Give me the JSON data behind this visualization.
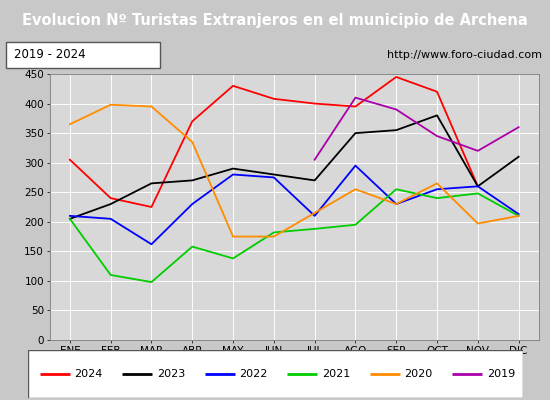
{
  "title": "Evolucion Nº Turistas Extranjeros en el municipio de Archena",
  "subtitle_left": "2019 - 2024",
  "subtitle_right": "http://www.foro-ciudad.com",
  "months": [
    "ENE",
    "FEB",
    "MAR",
    "ABR",
    "MAY",
    "JUN",
    "JUL",
    "AGO",
    "SEP",
    "OCT",
    "NOV",
    "DIC"
  ],
  "series": {
    "2024": {
      "color": "#ff0000",
      "data": [
        305,
        240,
        225,
        370,
        430,
        408,
        400,
        395,
        445,
        420,
        260,
        null
      ]
    },
    "2023": {
      "color": "#000000",
      "data": [
        205,
        230,
        265,
        270,
        290,
        280,
        270,
        350,
        355,
        380,
        260,
        310
      ]
    },
    "2022": {
      "color": "#0000ff",
      "data": [
        210,
        205,
        162,
        230,
        280,
        275,
        210,
        295,
        230,
        255,
        260,
        213
      ]
    },
    "2021": {
      "color": "#00cc00",
      "data": [
        205,
        110,
        98,
        158,
        138,
        182,
        188,
        195,
        255,
        240,
        248,
        210
      ]
    },
    "2020": {
      "color": "#ff8c00",
      "data": [
        365,
        398,
        395,
        335,
        175,
        175,
        215,
        255,
        230,
        265,
        197,
        210
      ]
    },
    "2019": {
      "color": "#aa00aa",
      "data": [
        null,
        null,
        null,
        null,
        null,
        null,
        305,
        410,
        390,
        345,
        320,
        360
      ]
    }
  },
  "ylim": [
    0,
    450
  ],
  "yticks": [
    0,
    50,
    100,
    150,
    200,
    250,
    300,
    350,
    400,
    450
  ],
  "title_bg_color": "#4472a8",
  "title_text_color": "#ffffff",
  "subtitle_bg_color": "#f0f0f0",
  "plot_bg_color": "#d8d8d8",
  "grid_color": "#ffffff",
  "legend_order": [
    "2024",
    "2023",
    "2022",
    "2021",
    "2020",
    "2019"
  ],
  "fig_width": 5.5,
  "fig_height": 4.0,
  "dpi": 100
}
